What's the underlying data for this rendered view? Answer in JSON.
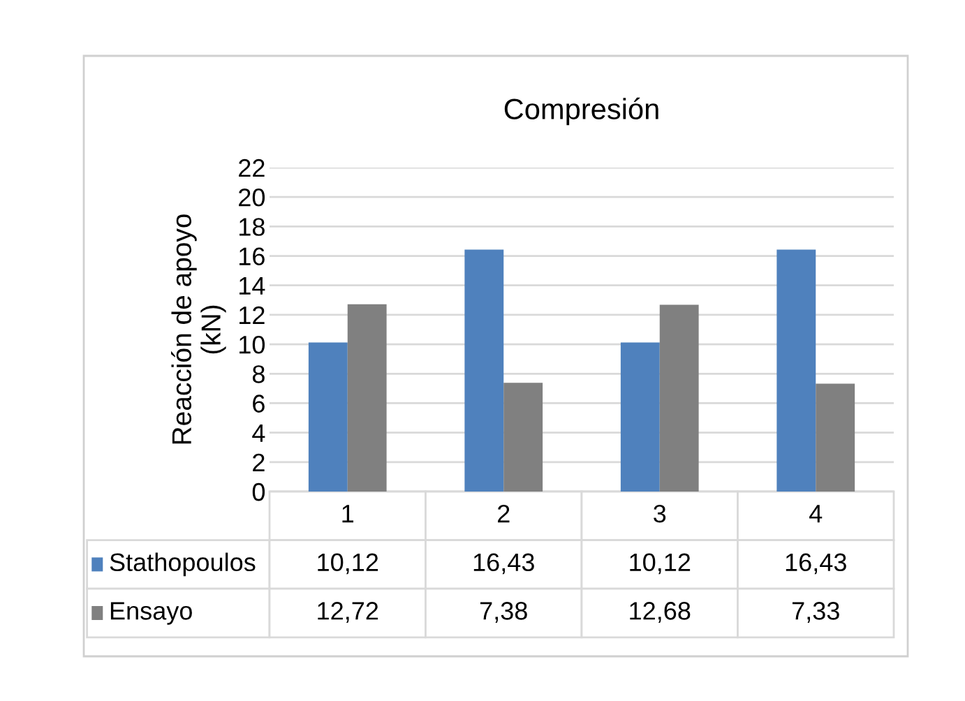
{
  "chart_data": {
    "type": "bar",
    "title": "Compresión",
    "ylabel": "Reacción de apoyo\n(kN)",
    "categories": [
      "1",
      "2",
      "3",
      "4"
    ],
    "series": [
      {
        "name": "Stathopoulos",
        "color": "#4f81bd",
        "values": [
          10.12,
          16.43,
          10.12,
          16.43
        ],
        "value_labels": [
          "10,12",
          "16,43",
          "10,12",
          "16,43"
        ]
      },
      {
        "name": "Ensayo",
        "color": "#808080",
        "values": [
          12.72,
          7.38,
          12.68,
          7.33
        ],
        "value_labels": [
          "12,72",
          "7,38",
          "12,68",
          "7,33"
        ]
      }
    ],
    "ylim": [
      0,
      22
    ],
    "yticks": [
      0,
      2,
      4,
      6,
      8,
      10,
      12,
      14,
      16,
      18,
      20,
      22
    ],
    "grid": "y",
    "legend": "bottom"
  }
}
